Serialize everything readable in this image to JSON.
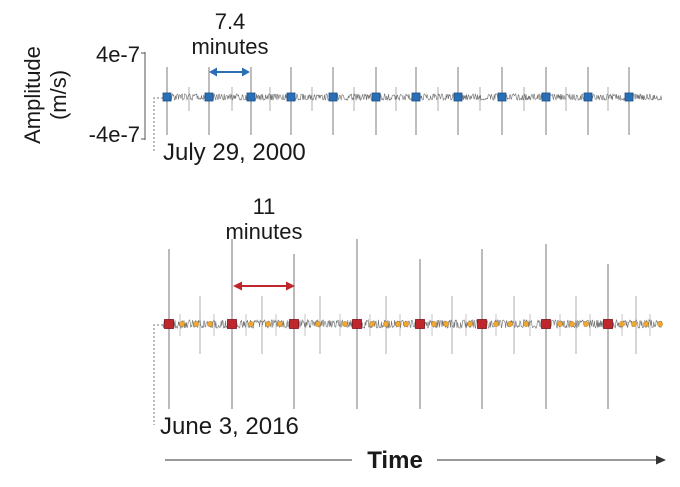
{
  "chart_data": [
    {
      "type": "line",
      "date": "July 29, 2000",
      "ylabel_line1": "Amplitude",
      "ylabel_line2": "(m/s)",
      "yticks": [
        "4e-7",
        "-4e-7"
      ],
      "ylim": [
        -4e-07,
        4e-07
      ],
      "interval_label_value": "7.4",
      "interval_label_unit": "minutes",
      "interval_minutes": 7.4,
      "event_marker_color": "#2a6fb5",
      "event_count": 12
    },
    {
      "type": "line",
      "date": "June 3, 2016",
      "interval_label_value": "11",
      "interval_label_unit": "minutes",
      "interval_minutes": 11,
      "event_marker_color": "#c0272d",
      "secondary_marker_color": "#f0a830",
      "event_count": 8
    }
  ],
  "xlabel": "Time",
  "colors": {
    "waveform": "#6e6e6e",
    "text": "#1a1a1a"
  }
}
